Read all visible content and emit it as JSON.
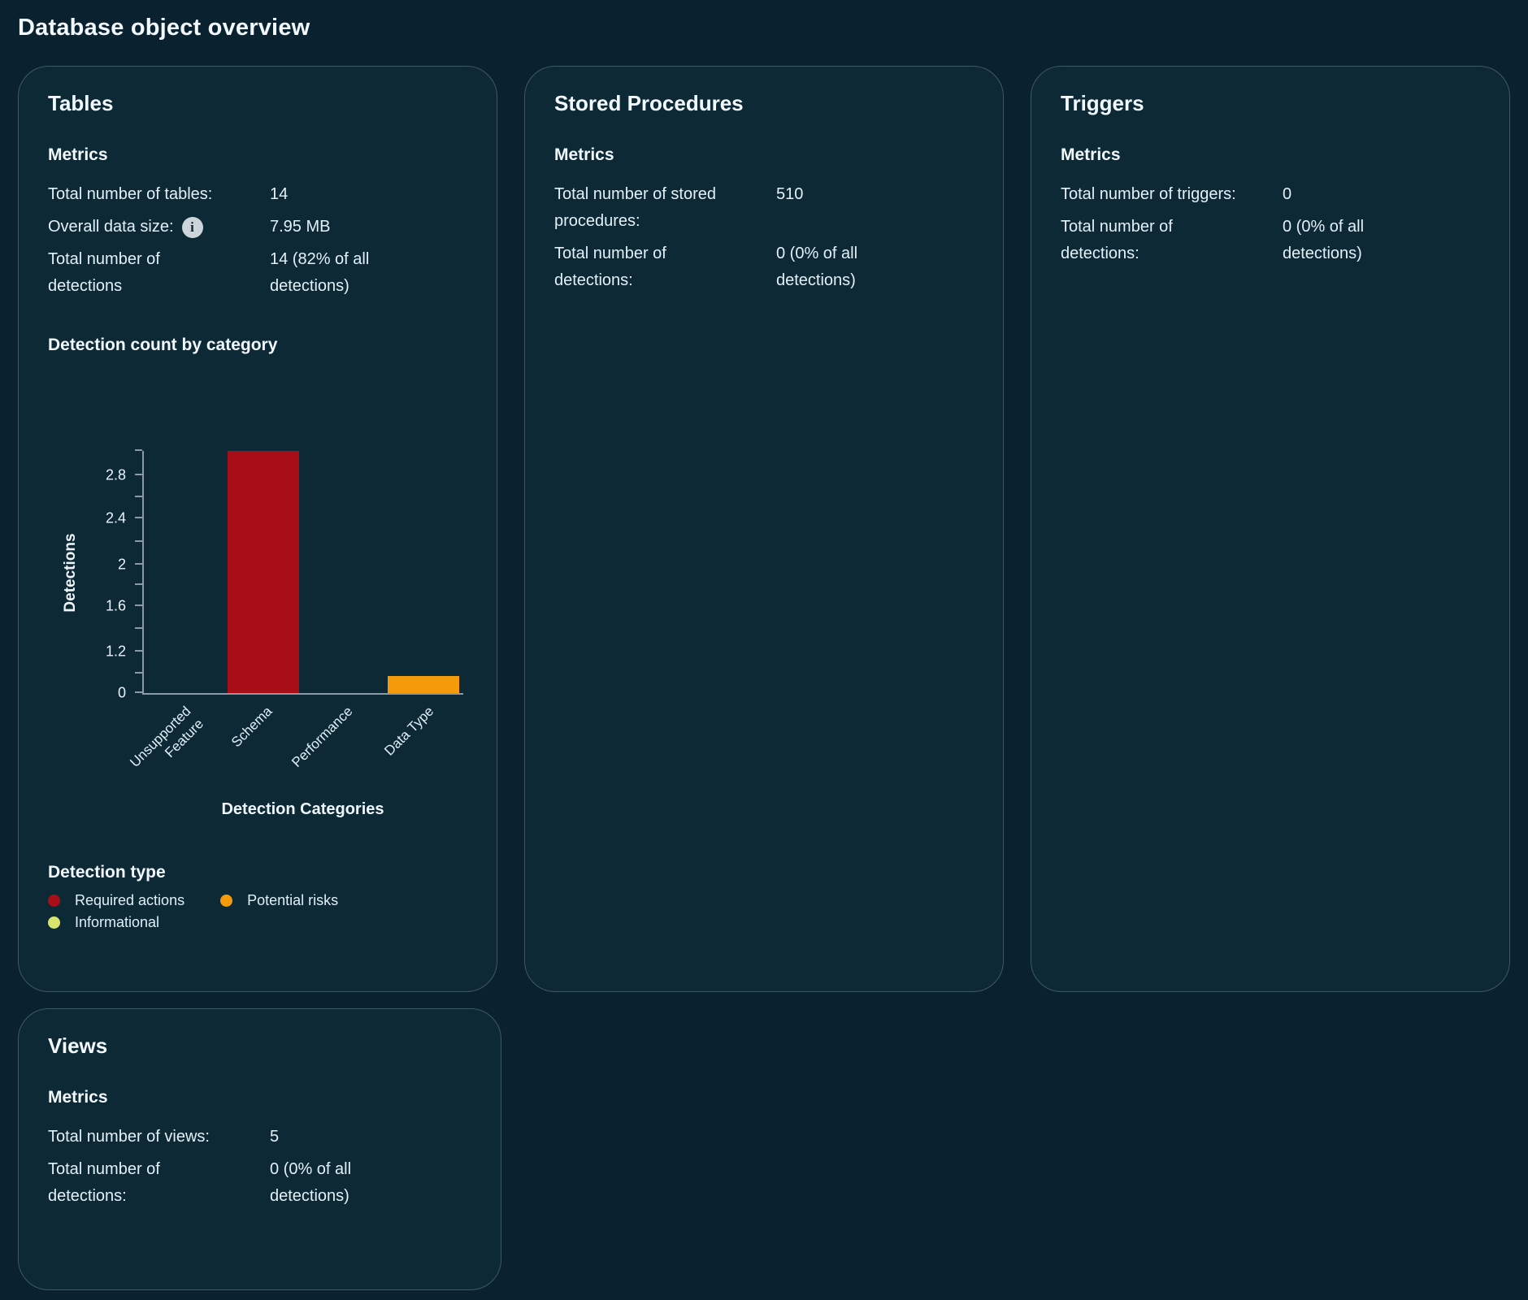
{
  "page": {
    "title": "Database object overview"
  },
  "cards": {
    "tables": {
      "title": "Tables",
      "metrics_heading": "Metrics",
      "rows": [
        {
          "label": "Total number of tables:",
          "value": "14"
        },
        {
          "label": "Overall data size:",
          "value": "7.95 MB",
          "info_glyph": "i"
        },
        {
          "label": "Total number of detections",
          "value": "14 (82% of all detections)"
        }
      ],
      "chart_heading": "Detection count by category"
    },
    "stored_procedures": {
      "title": "Stored Procedures",
      "metrics_heading": "Metrics",
      "rows": [
        {
          "label": "Total number of stored procedures:",
          "value": "510"
        },
        {
          "label": "Total number of detections:",
          "value": "0 (0% of all detections)"
        }
      ]
    },
    "triggers": {
      "title": "Triggers",
      "metrics_heading": "Metrics",
      "rows": [
        {
          "label": "Total number of triggers:",
          "value": "0"
        },
        {
          "label": "Total number of detections:",
          "value": "0 (0% of all detections)"
        }
      ]
    },
    "views": {
      "title": "Views",
      "metrics_heading": "Metrics",
      "rows": [
        {
          "label": "Total number of views:",
          "value": "5"
        },
        {
          "label": "Total number of detections:",
          "value": "0 (0% of all detections)"
        }
      ]
    }
  },
  "chart_data": {
    "type": "bar",
    "title": "Detection count by category",
    "categories": [
      "Unsupported Feature",
      "Schema",
      "Performance",
      "Data Type"
    ],
    "category_lines": [
      [
        "Unsupported",
        "Feature"
      ],
      [
        "Schema"
      ],
      [
        "Performance"
      ],
      [
        "Data Type"
      ]
    ],
    "values": [
      0,
      3,
      0,
      0.25
    ],
    "bar_colors": [
      "#a80e18",
      "#a80e18",
      "#a80e18",
      "#f59b0b"
    ],
    "bar_heights_pct": [
      0,
      100,
      0,
      7
    ],
    "xlabel": "Detection Categories",
    "ylabel": "Detections",
    "ylim": [
      0,
      3
    ],
    "grid": false,
    "yticks": [
      {
        "label": "0",
        "pct": 0
      },
      {
        "label": "1.2",
        "pct": 17
      },
      {
        "label": "1.6",
        "pct": 36
      },
      {
        "label": "2",
        "pct": 53
      },
      {
        "label": "2.4",
        "pct": 72
      },
      {
        "label": "2.8",
        "pct": 90
      }
    ],
    "minor_ticks_pct": [
      8,
      26.5,
      44.5,
      62.5,
      81,
      100
    ],
    "legend_position": "bottom-left"
  },
  "legend": {
    "title": "Detection type",
    "items": [
      {
        "label": "Required actions",
        "color": "#a80e18"
      },
      {
        "label": "Potential risks",
        "color": "#f59b0b"
      },
      {
        "label": "Informational",
        "color": "#d8e46e"
      }
    ]
  },
  "colors": {
    "page_bg": "#0a2230",
    "card_bg": "#0d2936",
    "card_border": "#3d5966",
    "heading_text": "#f2f9fc",
    "body_text": "#e3f1f7",
    "axis": "#8b9aa4",
    "required_actions": "#a80e18",
    "potential_risks": "#f59b0b",
    "informational": "#d8e46e"
  }
}
